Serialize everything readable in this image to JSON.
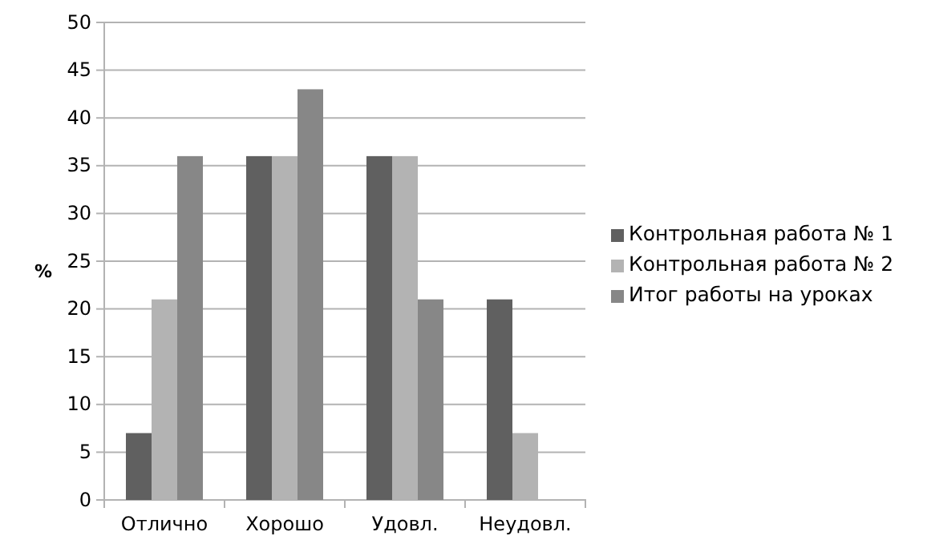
{
  "chart_data": {
    "type": "bar",
    "ylabel": "%",
    "categories": [
      "Отлично",
      "Хорошо",
      "Удовл.",
      "Неудовл."
    ],
    "series": [
      {
        "name": "Контрольная работа № 1",
        "color": "#606060",
        "values": [
          7,
          36,
          36,
          21
        ]
      },
      {
        "name": "Контрольная работа № 2",
        "color": "#b3b3b3",
        "values": [
          21,
          36,
          36,
          7
        ]
      },
      {
        "name": "Итог работы на уроках",
        "color": "#878787",
        "values": [
          36,
          43,
          21,
          0
        ]
      }
    ],
    "ylim": [
      0,
      50
    ],
    "yticks": [
      0,
      5,
      10,
      15,
      20,
      25,
      30,
      35,
      40,
      45,
      50
    ],
    "grid": "y",
    "legend": "right"
  }
}
